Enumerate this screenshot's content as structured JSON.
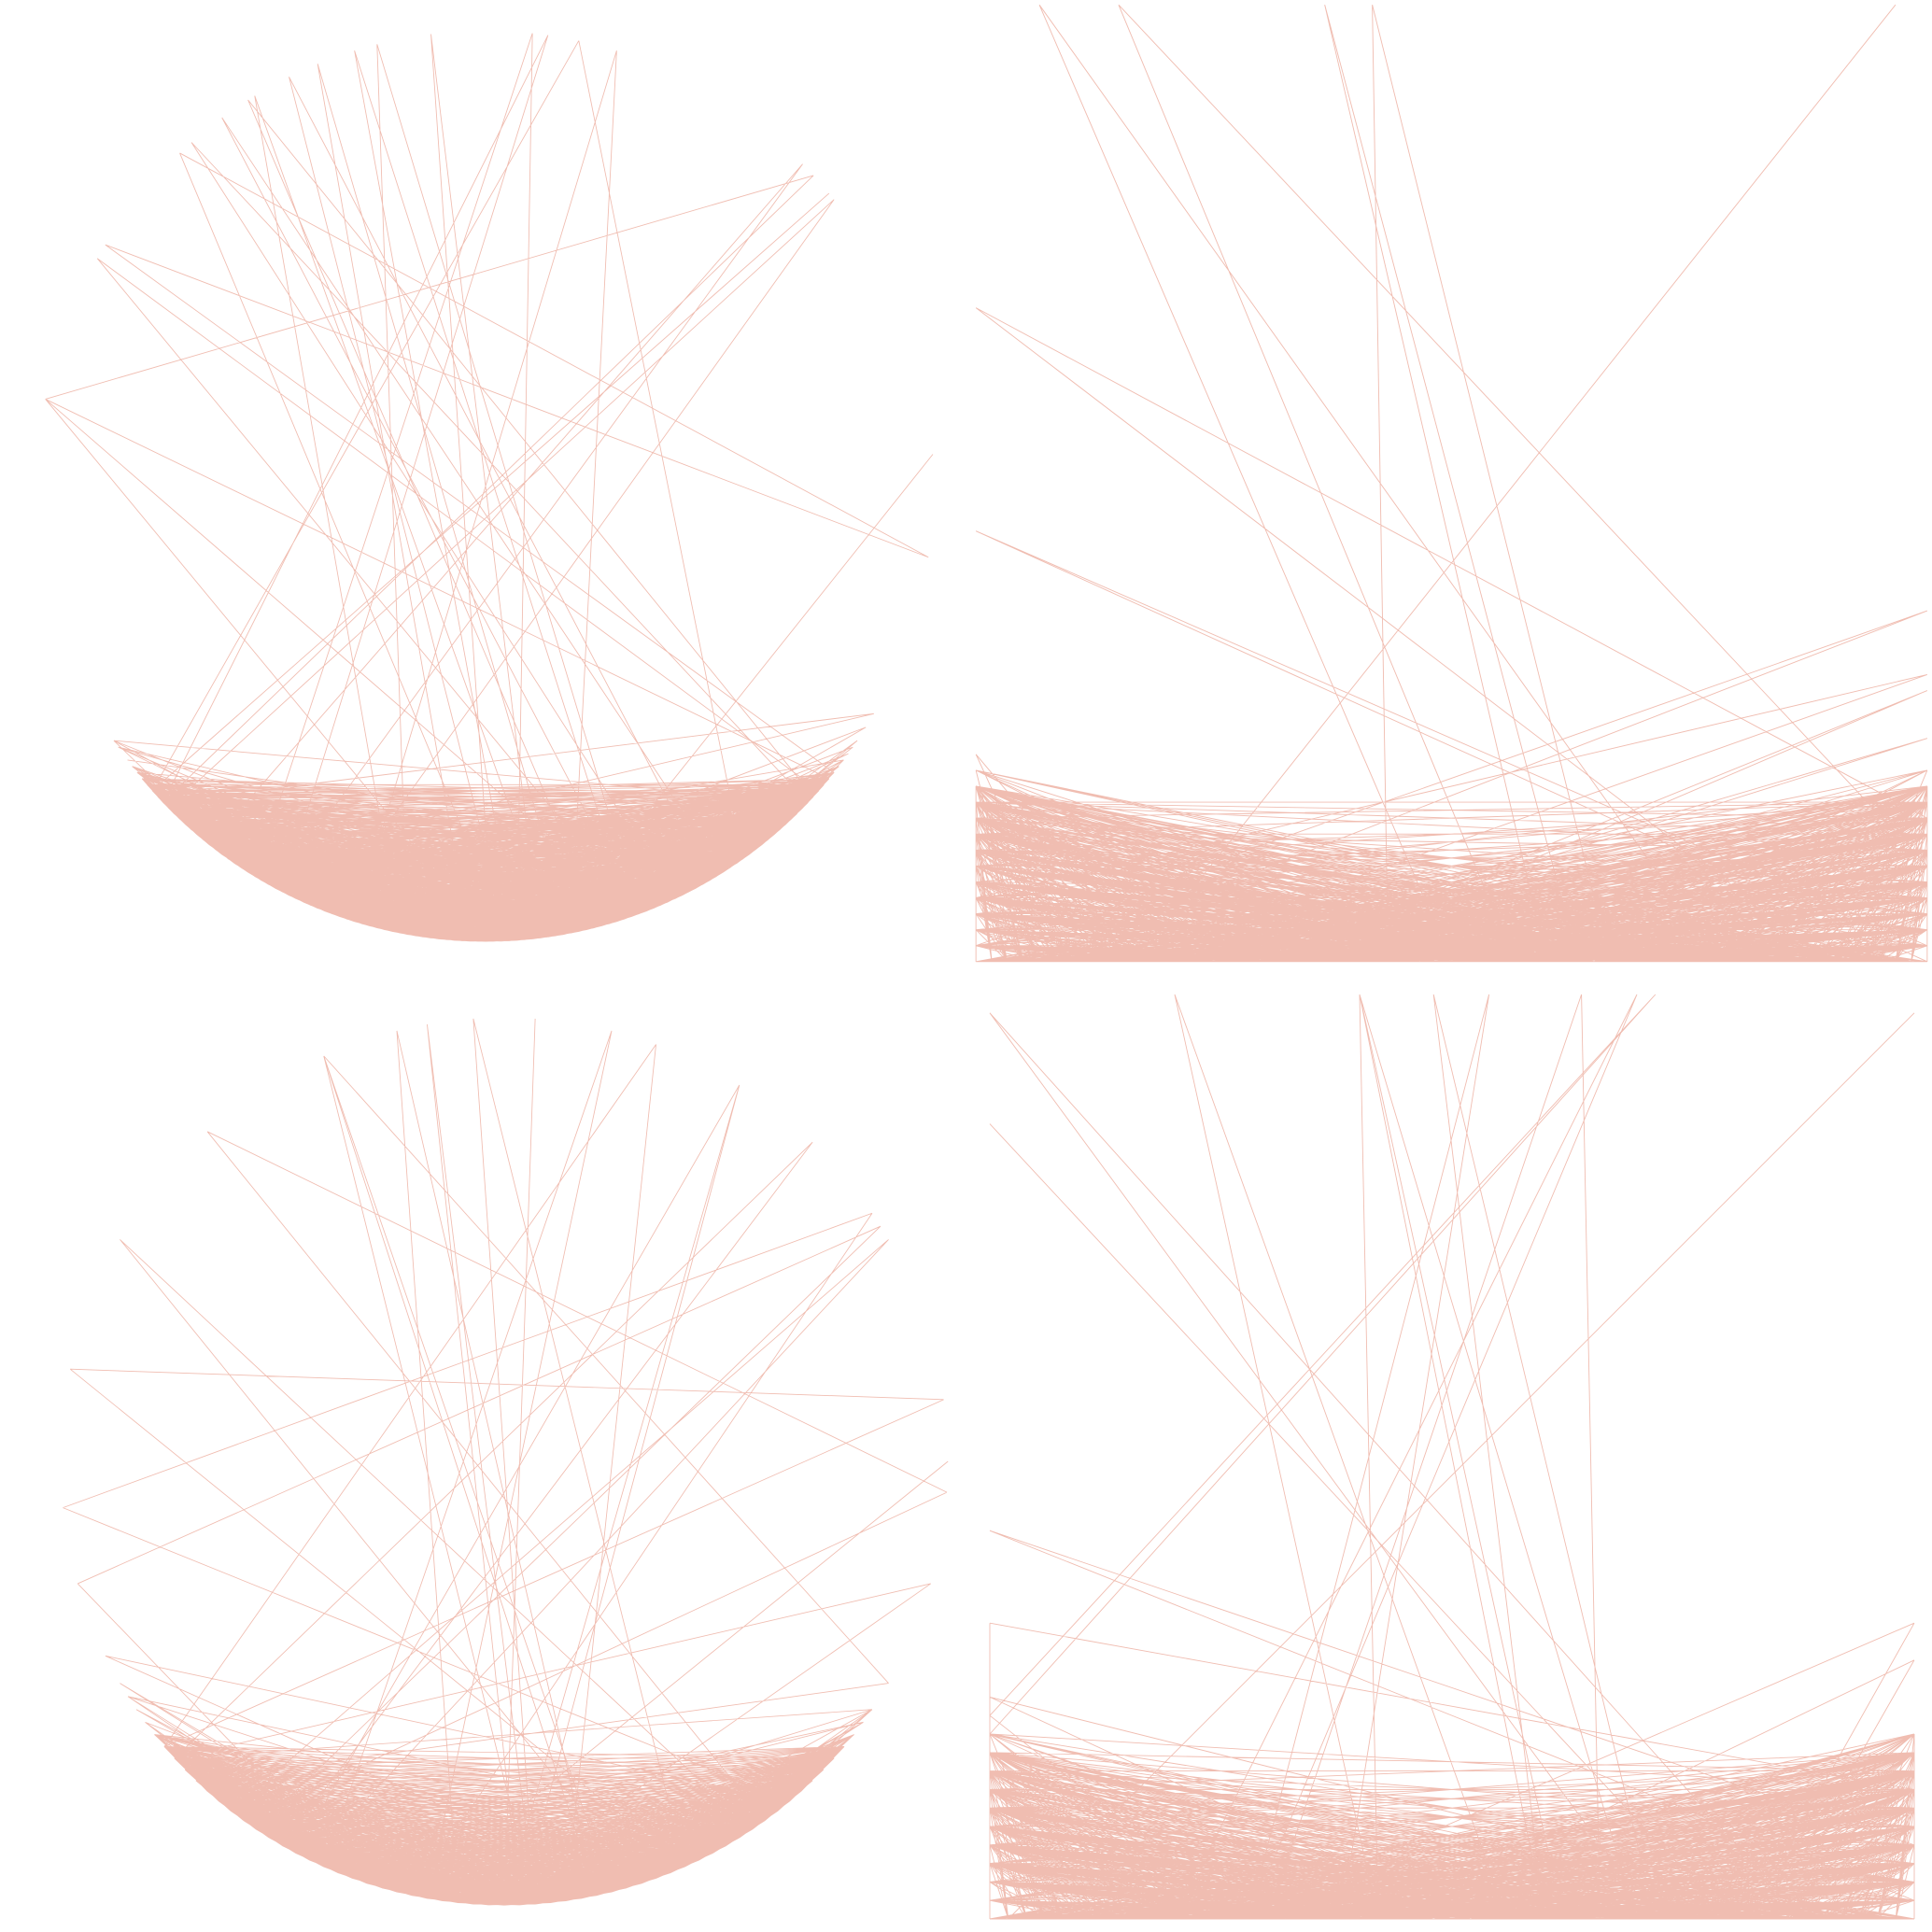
{
  "artwork": {
    "thread_color": "#d3411f",
    "background_color": "#ffffff",
    "panels": [
      {
        "id": "top-left",
        "frame": "circle",
        "pins": 360,
        "seed": 11
      },
      {
        "id": "top-right",
        "frame": "square",
        "pins": 240,
        "seed": 23
      },
      {
        "id": "bottom-left",
        "frame": "circle",
        "pins": 180,
        "seed": 37
      },
      {
        "id": "bottom-right",
        "frame": "square",
        "pins": 200,
        "seed": 53
      }
    ]
  }
}
